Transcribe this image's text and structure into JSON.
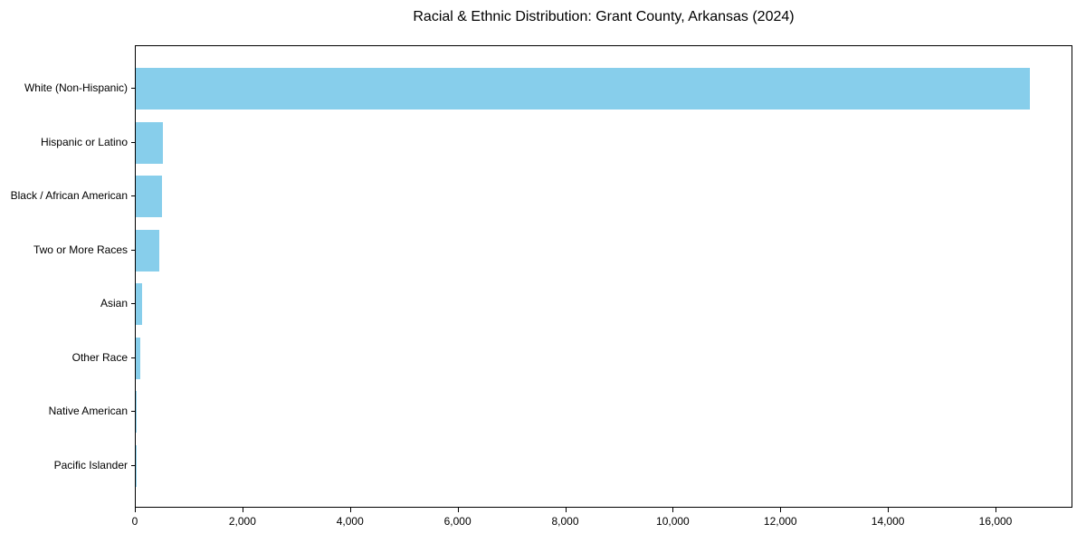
{
  "chart_data": {
    "type": "bar",
    "orientation": "horizontal",
    "title": "Racial & Ethnic Distribution: Grant County, Arkansas (2024)",
    "categories": [
      "White (Non-Hispanic)",
      "Hispanic or Latino",
      "Black / African American",
      "Two or More Races",
      "Asian",
      "Other Race",
      "Native American",
      "Pacific Islander"
    ],
    "values": [
      16620,
      510,
      495,
      430,
      110,
      80,
      25,
      5
    ],
    "xlabel": "",
    "ylabel": "",
    "xlim": [
      0,
      17430
    ],
    "x_ticks": [
      0,
      2000,
      4000,
      6000,
      8000,
      10000,
      12000,
      14000,
      16000
    ],
    "x_tick_labels": [
      "0",
      "2,000",
      "4,000",
      "6,000",
      "8,000",
      "10,000",
      "12,000",
      "14,000",
      "16,000"
    ],
    "bar_color": "#87CEEB",
    "axis_color": "#000000",
    "text_color": "#000000",
    "grid": false,
    "legend": null
  }
}
